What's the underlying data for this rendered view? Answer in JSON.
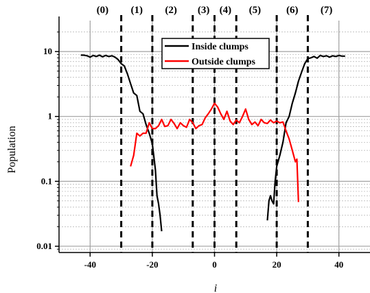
{
  "chart_data": {
    "type": "line",
    "title": "",
    "xlabel": "i",
    "ylabel": "Population",
    "xscale": "linear",
    "yscale": "log",
    "xlim": [
      -50,
      50
    ],
    "ylim": [
      0.008,
      30
    ],
    "x_ticks": [
      -40,
      -20,
      0,
      20,
      40
    ],
    "x_tick_labels": [
      "-40",
      "-20",
      "0",
      "20",
      "40"
    ],
    "y_ticks": [
      0.01,
      0.1,
      1,
      10
    ],
    "y_tick_labels": [
      "0.01",
      "0.1",
      "1",
      "10"
    ],
    "grid": true,
    "legend_position": "top-center",
    "region_boundaries": [
      -30,
      -20,
      -7,
      0,
      7,
      20,
      30
    ],
    "region_labels": [
      {
        "label": "(0)",
        "x": -36
      },
      {
        "label": "(1)",
        "x": -25
      },
      {
        "label": "(2)",
        "x": -14
      },
      {
        "label": "(3)",
        "x": -3.5
      },
      {
        "label": "(4)",
        "x": 3.5
      },
      {
        "label": "(5)",
        "x": 13
      },
      {
        "label": "(6)",
        "x": 25
      },
      {
        "label": "(7)",
        "x": 36
      }
    ],
    "series": [
      {
        "name": "Inside clumps",
        "color": "#000000",
        "points": [
          [
            -43,
            8.8
          ],
          [
            -42,
            8.8
          ],
          [
            -41,
            8.6
          ],
          [
            -40,
            8.2
          ],
          [
            -39,
            8.7
          ],
          [
            -38,
            8.4
          ],
          [
            -37,
            8.8
          ],
          [
            -36,
            8.3
          ],
          [
            -35,
            8.7
          ],
          [
            -34,
            8.4
          ],
          [
            -33,
            8.6
          ],
          [
            -32,
            8.2
          ],
          [
            -31,
            7.5
          ],
          [
            -30,
            6.5
          ],
          [
            -29,
            6.0
          ],
          [
            -28,
            4.5
          ],
          [
            -27,
            3.2
          ],
          [
            -26,
            2.3
          ],
          [
            -25,
            2.1
          ],
          [
            -24,
            1.2
          ],
          [
            -23,
            1.1
          ],
          [
            -22,
            0.75
          ],
          [
            -21,
            0.55
          ],
          [
            -20,
            0.38
          ],
          [
            -19,
            0.15
          ],
          [
            -18.5,
            0.06
          ],
          [
            -18,
            0.045
          ],
          [
            -17.5,
            0.03
          ],
          [
            -17,
            0.017
          ]
        ]
      },
      {
        "name": "",
        "color": "#000000",
        "points": [
          [
            17,
            0.025
          ],
          [
            17.5,
            0.05
          ],
          [
            18,
            0.06
          ],
          [
            18.5,
            0.05
          ],
          [
            19,
            0.045
          ],
          [
            19.5,
            0.1
          ],
          [
            20,
            0.17
          ],
          [
            21,
            0.25
          ],
          [
            22,
            0.4
          ],
          [
            23,
            0.8
          ],
          [
            24,
            1.0
          ],
          [
            25,
            1.6
          ],
          [
            26,
            2.3
          ],
          [
            27,
            3.5
          ],
          [
            28,
            4.8
          ],
          [
            29,
            6.5
          ],
          [
            30,
            7.8
          ],
          [
            31,
            8.0
          ],
          [
            32,
            8.4
          ],
          [
            33,
            7.9
          ],
          [
            34,
            8.7
          ],
          [
            35,
            8.4
          ],
          [
            36,
            8.6
          ],
          [
            37,
            8.2
          ],
          [
            38,
            8.6
          ],
          [
            39,
            8.4
          ],
          [
            40,
            8.7
          ],
          [
            41,
            8.5
          ],
          [
            42,
            8.5
          ]
        ]
      },
      {
        "name": "Outside clumps",
        "color": "#ff0000",
        "points": [
          [
            -27,
            0.17
          ],
          [
            -26,
            0.25
          ],
          [
            -25,
            0.55
          ],
          [
            -24,
            0.5
          ],
          [
            -23,
            0.55
          ],
          [
            -22,
            0.55
          ],
          [
            -21,
            0.8
          ],
          [
            -20,
            0.65
          ],
          [
            -19,
            0.65
          ],
          [
            -18,
            0.72
          ],
          [
            -17,
            0.9
          ],
          [
            -16,
            0.7
          ],
          [
            -15,
            0.72
          ],
          [
            -14,
            0.9
          ],
          [
            -13,
            0.78
          ],
          [
            -12,
            0.65
          ],
          [
            -11,
            0.8
          ],
          [
            -10,
            0.72
          ],
          [
            -9,
            0.68
          ],
          [
            -8,
            0.9
          ],
          [
            -7,
            0.8
          ],
          [
            -6,
            0.65
          ],
          [
            -5,
            0.72
          ],
          [
            -4,
            0.75
          ],
          [
            -3,
            0.95
          ],
          [
            -2,
            1.1
          ],
          [
            -1,
            1.3
          ],
          [
            0,
            1.6
          ],
          [
            1,
            1.4
          ],
          [
            2,
            1.1
          ],
          [
            3,
            0.9
          ],
          [
            4,
            1.2
          ],
          [
            5,
            0.85
          ],
          [
            6,
            0.75
          ],
          [
            7,
            0.88
          ],
          [
            8,
            0.8
          ],
          [
            9,
            1.0
          ],
          [
            10,
            1.3
          ],
          [
            11,
            0.9
          ],
          [
            12,
            0.75
          ],
          [
            13,
            0.82
          ],
          [
            14,
            0.72
          ],
          [
            15,
            0.9
          ],
          [
            16,
            0.8
          ],
          [
            17,
            0.78
          ],
          [
            18,
            0.88
          ],
          [
            19,
            0.8
          ],
          [
            20,
            0.85
          ],
          [
            21,
            0.8
          ],
          [
            22,
            0.82
          ],
          [
            23,
            0.6
          ],
          [
            24,
            0.45
          ],
          [
            25,
            0.3
          ],
          [
            26,
            0.2
          ],
          [
            26.5,
            0.22
          ],
          [
            27,
            0.048
          ]
        ]
      }
    ]
  }
}
